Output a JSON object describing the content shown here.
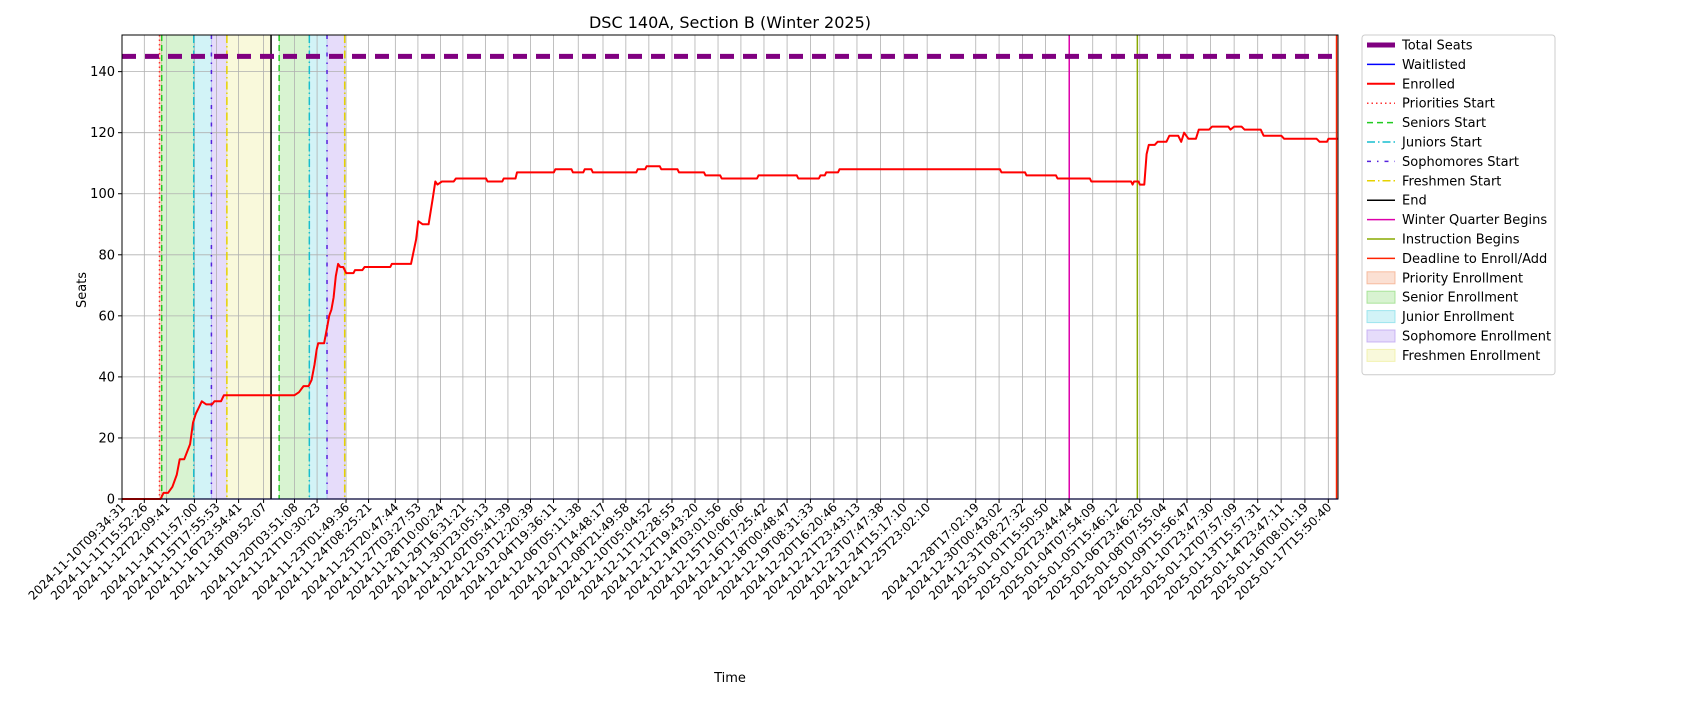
{
  "chart_data": {
    "type": "line",
    "title": "DSC 140A, Section B (Winter 2025)",
    "xlabel": "Time",
    "ylabel": "Seats",
    "x_domain": [
      "2024-11-10T09:34:31",
      "2025-01-18T05:00:00"
    ],
    "ylim": [
      0,
      152
    ],
    "yticks": [
      0,
      20,
      40,
      60,
      80,
      100,
      120,
      140
    ],
    "grid": true,
    "legend_position": "outside-right",
    "x_ticks": [
      "2024-11-10T09:34:31",
      "2024-11-11T15:52:26",
      "2024-11-12T22:09:41",
      "2024-11-14T11:57:00",
      "2024-11-15T17:55:53",
      "2024-11-16T23:54:41",
      "2024-11-18T09:52:07",
      "2024-11-20T03:51:08",
      "2024-11-21T10:30:23",
      "2024-11-23T01:49:36",
      "2024-11-24T08:25:21",
      "2024-11-25T20:47:44",
      "2024-11-27T03:27:53",
      "2024-11-28T10:00:24",
      "2024-11-29T16:31:21",
      "2024-11-30T23:05:13",
      "2024-12-02T05:41:39",
      "2024-12-03T12:20:39",
      "2024-12-04T19:36:11",
      "2024-12-06T05:11:38",
      "2024-12-07T14:48:17",
      "2024-12-08T21:49:58",
      "2024-12-10T05:04:52",
      "2024-12-11T12:28:55",
      "2024-12-12T19:43:20",
      "2024-12-14T03:01:56",
      "2024-12-15T10:06:06",
      "2024-12-16T17:25:42",
      "2024-12-18T00:48:47",
      "2024-12-19T08:31:33",
      "2024-12-20T16:20:46",
      "2024-12-21T23:43:13",
      "2024-12-23T07:47:38",
      "2024-12-24T15:17:10",
      "2024-12-25T23:02:10",
      "2024-12-28T17:02:19",
      "2024-12-30T00:43:02",
      "2024-12-31T08:27:32",
      "2025-01-01T15:50:50",
      "2025-01-02T23:44:44",
      "2025-01-04T07:54:09",
      "2025-01-05T15:46:12",
      "2025-01-06T23:46:20",
      "2025-01-08T07:55:04",
      "2025-01-09T15:56:47",
      "2025-01-10T23:47:30",
      "2025-01-12T07:57:09",
      "2025-01-13T15:57:31",
      "2025-01-14T23:47:11",
      "2025-01-16T08:01:19",
      "2025-01-17T15:50:40"
    ],
    "series": [
      {
        "name": "Total Seats",
        "style": "dashed",
        "color": "#800080",
        "points": [
          [
            "2024-11-10T09:34:31",
            145
          ],
          [
            "2025-01-18T05:00:00",
            145
          ]
        ]
      },
      {
        "name": "Waitlisted",
        "style": "solid",
        "color": "#0000ff",
        "points": [
          [
            "2024-11-10T09:34:31",
            0
          ],
          [
            "2025-01-18T05:00:00",
            0
          ]
        ]
      },
      {
        "name": "Enrolled",
        "style": "solid",
        "color": "#ff0000",
        "points": [
          [
            "2024-11-10T09:34:31",
            0
          ],
          [
            "2024-11-12T14:00:00",
            0
          ],
          [
            "2024-11-12T18:00:00",
            2
          ],
          [
            "2024-11-13T00:00:00",
            2
          ],
          [
            "2024-11-13T06:00:00",
            4
          ],
          [
            "2024-11-13T12:00:00",
            8
          ],
          [
            "2024-11-13T16:00:00",
            13
          ],
          [
            "2024-11-13T22:00:00",
            13
          ],
          [
            "2024-11-14T06:00:00",
            18
          ],
          [
            "2024-11-14T10:00:00",
            25
          ],
          [
            "2024-11-14T14:00:00",
            28
          ],
          [
            "2024-11-14T18:00:00",
            30
          ],
          [
            "2024-11-14T22:00:00",
            32
          ],
          [
            "2024-11-15T04:00:00",
            31
          ],
          [
            "2024-11-15T12:00:00",
            31
          ],
          [
            "2024-11-15T15:00:00",
            32
          ],
          [
            "2024-11-16T00:00:00",
            32
          ],
          [
            "2024-11-16T04:00:00",
            34
          ],
          [
            "2024-11-20T03:51:08",
            34
          ],
          [
            "2024-11-20T10:00:00",
            35
          ],
          [
            "2024-11-20T16:00:00",
            37
          ],
          [
            "2024-11-20T23:00:00",
            37
          ],
          [
            "2024-11-21T03:00:00",
            39
          ],
          [
            "2024-11-21T07:00:00",
            44
          ],
          [
            "2024-11-21T10:00:00",
            49
          ],
          [
            "2024-11-21T12:00:00",
            51
          ],
          [
            "2024-11-21T20:00:00",
            51
          ],
          [
            "2024-11-22T00:00:00",
            56
          ],
          [
            "2024-11-22T03:00:00",
            60
          ],
          [
            "2024-11-22T06:00:00",
            62
          ],
          [
            "2024-11-22T09:00:00",
            66
          ],
          [
            "2024-11-22T12:00:00",
            73
          ],
          [
            "2024-11-22T15:00:00",
            77
          ],
          [
            "2024-11-22T18:00:00",
            76
          ],
          [
            "2024-11-22T22:00:00",
            76
          ],
          [
            "2024-11-23T02:00:00",
            74
          ],
          [
            "2024-11-23T12:00:00",
            74
          ],
          [
            "2024-11-23T14:00:00",
            75
          ],
          [
            "2024-11-24T00:00:00",
            75
          ],
          [
            "2024-11-24T03:00:00",
            76
          ],
          [
            "2024-11-25T14:00:00",
            76
          ],
          [
            "2024-11-25T16:00:00",
            77
          ],
          [
            "2024-11-26T18:00:00",
            77
          ],
          [
            "2024-11-27T01:00:00",
            85
          ],
          [
            "2024-11-27T04:00:00",
            91
          ],
          [
            "2024-11-27T10:00:00",
            90
          ],
          [
            "2024-11-27T18:00:00",
            90
          ],
          [
            "2024-11-28T00:00:00",
            99
          ],
          [
            "2024-11-28T03:00:00",
            104
          ],
          [
            "2024-11-28T06:00:00",
            103
          ],
          [
            "2024-11-28T12:00:00",
            104
          ],
          [
            "2024-11-29T04:00:00",
            104
          ],
          [
            "2024-11-29T07:00:00",
            105
          ],
          [
            "2024-12-01T00:00:00",
            105
          ],
          [
            "2024-12-01T02:00:00",
            104
          ],
          [
            "2024-12-01T22:00:00",
            104
          ],
          [
            "2024-12-02T00:00:00",
            105
          ],
          [
            "2024-12-02T16:00:00",
            105
          ],
          [
            "2024-12-02T18:00:00",
            107
          ],
          [
            "2024-12-04T20:00:00",
            107
          ],
          [
            "2024-12-04T22:00:00",
            108
          ],
          [
            "2024-12-05T20:00:00",
            108
          ],
          [
            "2024-12-05T22:00:00",
            107
          ],
          [
            "2024-12-06T12:00:00",
            107
          ],
          [
            "2024-12-06T14:00:00",
            108
          ],
          [
            "2024-12-06T23:00:00",
            108
          ],
          [
            "2024-12-07T01:00:00",
            107
          ],
          [
            "2024-12-09T12:00:00",
            107
          ],
          [
            "2024-12-09T14:00:00",
            108
          ],
          [
            "2024-12-10T00:00:00",
            108
          ],
          [
            "2024-12-10T02:00:00",
            109
          ],
          [
            "2024-12-10T20:00:00",
            109
          ],
          [
            "2024-12-10T22:00:00",
            108
          ],
          [
            "2024-12-11T20:00:00",
            108
          ],
          [
            "2024-12-11T22:00:00",
            107
          ],
          [
            "2024-12-13T08:00:00",
            107
          ],
          [
            "2024-12-13T10:00:00",
            106
          ],
          [
            "2024-12-14T06:00:00",
            106
          ],
          [
            "2024-12-14T08:00:00",
            105
          ],
          [
            "2024-12-16T08:00:00",
            105
          ],
          [
            "2024-12-16T10:00:00",
            106
          ],
          [
            "2024-12-18T14:00:00",
            106
          ],
          [
            "2024-12-18T16:00:00",
            105
          ],
          [
            "2024-12-19T20:00:00",
            105
          ],
          [
            "2024-12-19T22:00:00",
            106
          ],
          [
            "2024-12-20T04:00:00",
            106
          ],
          [
            "2024-12-20T06:00:00",
            107
          ],
          [
            "2024-12-20T22:00:00",
            107
          ],
          [
            "2024-12-21T00:00:00",
            108
          ],
          [
            "2024-12-30T02:00:00",
            108
          ],
          [
            "2024-12-30T04:00:00",
            107
          ],
          [
            "2024-12-31T12:00:00",
            107
          ],
          [
            "2024-12-31T14:00:00",
            106
          ],
          [
            "2025-01-02T06:00:00",
            106
          ],
          [
            "2025-01-02T08:00:00",
            105
          ],
          [
            "2025-01-04T04:00:00",
            105
          ],
          [
            "2025-01-04T06:00:00",
            104
          ],
          [
            "2025-01-06T12:00:00",
            104
          ],
          [
            "2025-01-06T14:00:00",
            103
          ],
          [
            "2025-01-06T16:00:00",
            104
          ],
          [
            "2025-01-06T22:00:00",
            104
          ],
          [
            "2025-01-07T00:00:00",
            103
          ],
          [
            "2025-01-07T06:00:00",
            103
          ],
          [
            "2025-01-07T09:00:00",
            113
          ],
          [
            "2025-01-07T12:00:00",
            116
          ],
          [
            "2025-01-07T20:00:00",
            116
          ],
          [
            "2025-01-08T00:00:00",
            117
          ],
          [
            "2025-01-08T12:00:00",
            117
          ],
          [
            "2025-01-08T16:00:00",
            119
          ],
          [
            "2025-01-09T04:00:00",
            119
          ],
          [
            "2025-01-09T08:00:00",
            117
          ],
          [
            "2025-01-09T12:00:00",
            120
          ],
          [
            "2025-01-09T18:00:00",
            118
          ],
          [
            "2025-01-10T04:00:00",
            118
          ],
          [
            "2025-01-10T08:00:00",
            121
          ],
          [
            "2025-01-10T22:00:00",
            121
          ],
          [
            "2025-01-11T02:00:00",
            122
          ],
          [
            "2025-01-12T00:00:00",
            122
          ],
          [
            "2025-01-12T03:00:00",
            121
          ],
          [
            "2025-01-12T08:00:00",
            122
          ],
          [
            "2025-01-12T18:00:00",
            122
          ],
          [
            "2025-01-12T22:00:00",
            121
          ],
          [
            "2025-01-13T20:00:00",
            121
          ],
          [
            "2025-01-14T00:00:00",
            119
          ],
          [
            "2025-01-15T00:00:00",
            119
          ],
          [
            "2025-01-15T04:00:00",
            118
          ],
          [
            "2025-01-17T00:00:00",
            118
          ],
          [
            "2025-01-17T04:00:00",
            117
          ],
          [
            "2025-01-17T14:00:00",
            117
          ],
          [
            "2025-01-17T16:00:00",
            118
          ],
          [
            "2025-01-18T05:00:00",
            118
          ]
        ]
      }
    ],
    "event_lines": [
      {
        "name": "Priorities Start",
        "time": "2024-11-12T12:30:00",
        "style": "dotted",
        "color": "#ff3333"
      },
      {
        "name": "Seniors Start",
        "time": "2024-11-12T15:30:00",
        "style": "dashed",
        "color": "#22cc22"
      },
      {
        "name": "Juniors Start",
        "time": "2024-11-14T11:00:00",
        "style": "dashdot",
        "color": "#17becf"
      },
      {
        "name": "Sophomores Start",
        "time": "2024-11-15T11:00:00",
        "style": "densedashdot",
        "color": "#5522dd"
      },
      {
        "name": "Freshmen Start",
        "time": "2024-11-16T08:00:00",
        "style": "dashdot",
        "color": "#e6d200"
      },
      {
        "name": "End",
        "time": "2024-11-18T20:00:00",
        "style": "solid",
        "color": "#000000"
      },
      {
        "name": "Seniors Start",
        "time": "2024-11-19T07:00:00",
        "style": "dashed",
        "color": "#22cc22"
      },
      {
        "name": "Juniors Start",
        "time": "2024-11-21T00:00:00",
        "style": "dashdot",
        "color": "#17becf"
      },
      {
        "name": "Sophomores Start",
        "time": "2024-11-22T00:00:00",
        "style": "densedashdot",
        "color": "#5522dd"
      },
      {
        "name": "Freshmen Start",
        "time": "2024-11-23T00:00:00",
        "style": "dashdot",
        "color": "#e6d200"
      },
      {
        "name": "Winter Quarter Begins",
        "time": "2025-01-03T00:00:00",
        "style": "solid",
        "color": "#dd00aa"
      },
      {
        "name": "Instruction Begins",
        "time": "2025-01-06T20:30:00",
        "style": "solid",
        "color": "#88aa00"
      },
      {
        "name": "Deadline to Enroll/Add",
        "time": "2025-01-18T03:00:00",
        "style": "solid",
        "color": "#ff2200"
      }
    ],
    "regions": [
      {
        "name": "Priority Enrollment",
        "start": "2024-11-12T12:30:00",
        "end": "2024-11-12T15:30:00",
        "color": "#f4a582"
      },
      {
        "name": "Senior Enrollment",
        "start": "2024-11-12T15:30:00",
        "end": "2024-11-14T11:00:00",
        "color": "#8fdc7a"
      },
      {
        "name": "Junior Enrollment",
        "start": "2024-11-14T11:00:00",
        "end": "2024-11-15T11:00:00",
        "color": "#7fdde8"
      },
      {
        "name": "Sophomore Enrollment",
        "start": "2024-11-15T11:00:00",
        "end": "2024-11-16T08:00:00",
        "color": "#b89cf0"
      },
      {
        "name": "Freshmen Enrollment",
        "start": "2024-11-16T08:00:00",
        "end": "2024-11-18T20:00:00",
        "color": "#eeee99"
      },
      {
        "name": "Senior Enrollment",
        "start": "2024-11-19T07:00:00",
        "end": "2024-11-21T00:00:00",
        "color": "#8fdc7a"
      },
      {
        "name": "Junior Enrollment",
        "start": "2024-11-21T00:00:00",
        "end": "2024-11-22T00:00:00",
        "color": "#7fdde8"
      },
      {
        "name": "Sophomore Enrollment",
        "start": "2024-11-22T00:00:00",
        "end": "2024-11-23T00:00:00",
        "color": "#b89cf0"
      }
    ],
    "legend": [
      {
        "label": "Total Seats",
        "kind": "line",
        "style": "thickdash",
        "color": "#800080"
      },
      {
        "label": "Waitlisted",
        "kind": "line",
        "style": "solid",
        "color": "#0000ff"
      },
      {
        "label": "Enrolled",
        "kind": "line",
        "style": "solidthick",
        "color": "#ff0000"
      },
      {
        "label": "Priorities Start",
        "kind": "line",
        "style": "dotted",
        "color": "#ff3333"
      },
      {
        "label": "Seniors Start",
        "kind": "line",
        "style": "dashed",
        "color": "#22cc22"
      },
      {
        "label": "Juniors Start",
        "kind": "line",
        "style": "dashdot",
        "color": "#17becf"
      },
      {
        "label": "Sophomores Start",
        "kind": "line",
        "style": "densedashdot",
        "color": "#5522dd"
      },
      {
        "label": "Freshmen Start",
        "kind": "line",
        "style": "dashdot",
        "color": "#e6d200"
      },
      {
        "label": "End",
        "kind": "line",
        "style": "solid",
        "color": "#000000"
      },
      {
        "label": "Winter Quarter Begins",
        "kind": "line",
        "style": "solid",
        "color": "#dd00aa"
      },
      {
        "label": "Instruction Begins",
        "kind": "line",
        "style": "solid",
        "color": "#88aa00"
      },
      {
        "label": "Deadline to Enroll/Add",
        "kind": "line",
        "style": "solid",
        "color": "#ff2200"
      },
      {
        "label": "Priority Enrollment",
        "kind": "patch",
        "color": "#f4a582"
      },
      {
        "label": "Senior Enrollment",
        "kind": "patch",
        "color": "#8fdc7a"
      },
      {
        "label": "Junior Enrollment",
        "kind": "patch",
        "color": "#7fdde8"
      },
      {
        "label": "Sophomore Enrollment",
        "kind": "patch",
        "color": "#b89cf0"
      },
      {
        "label": "Freshmen Enrollment",
        "kind": "patch",
        "color": "#eeee99"
      }
    ]
  }
}
